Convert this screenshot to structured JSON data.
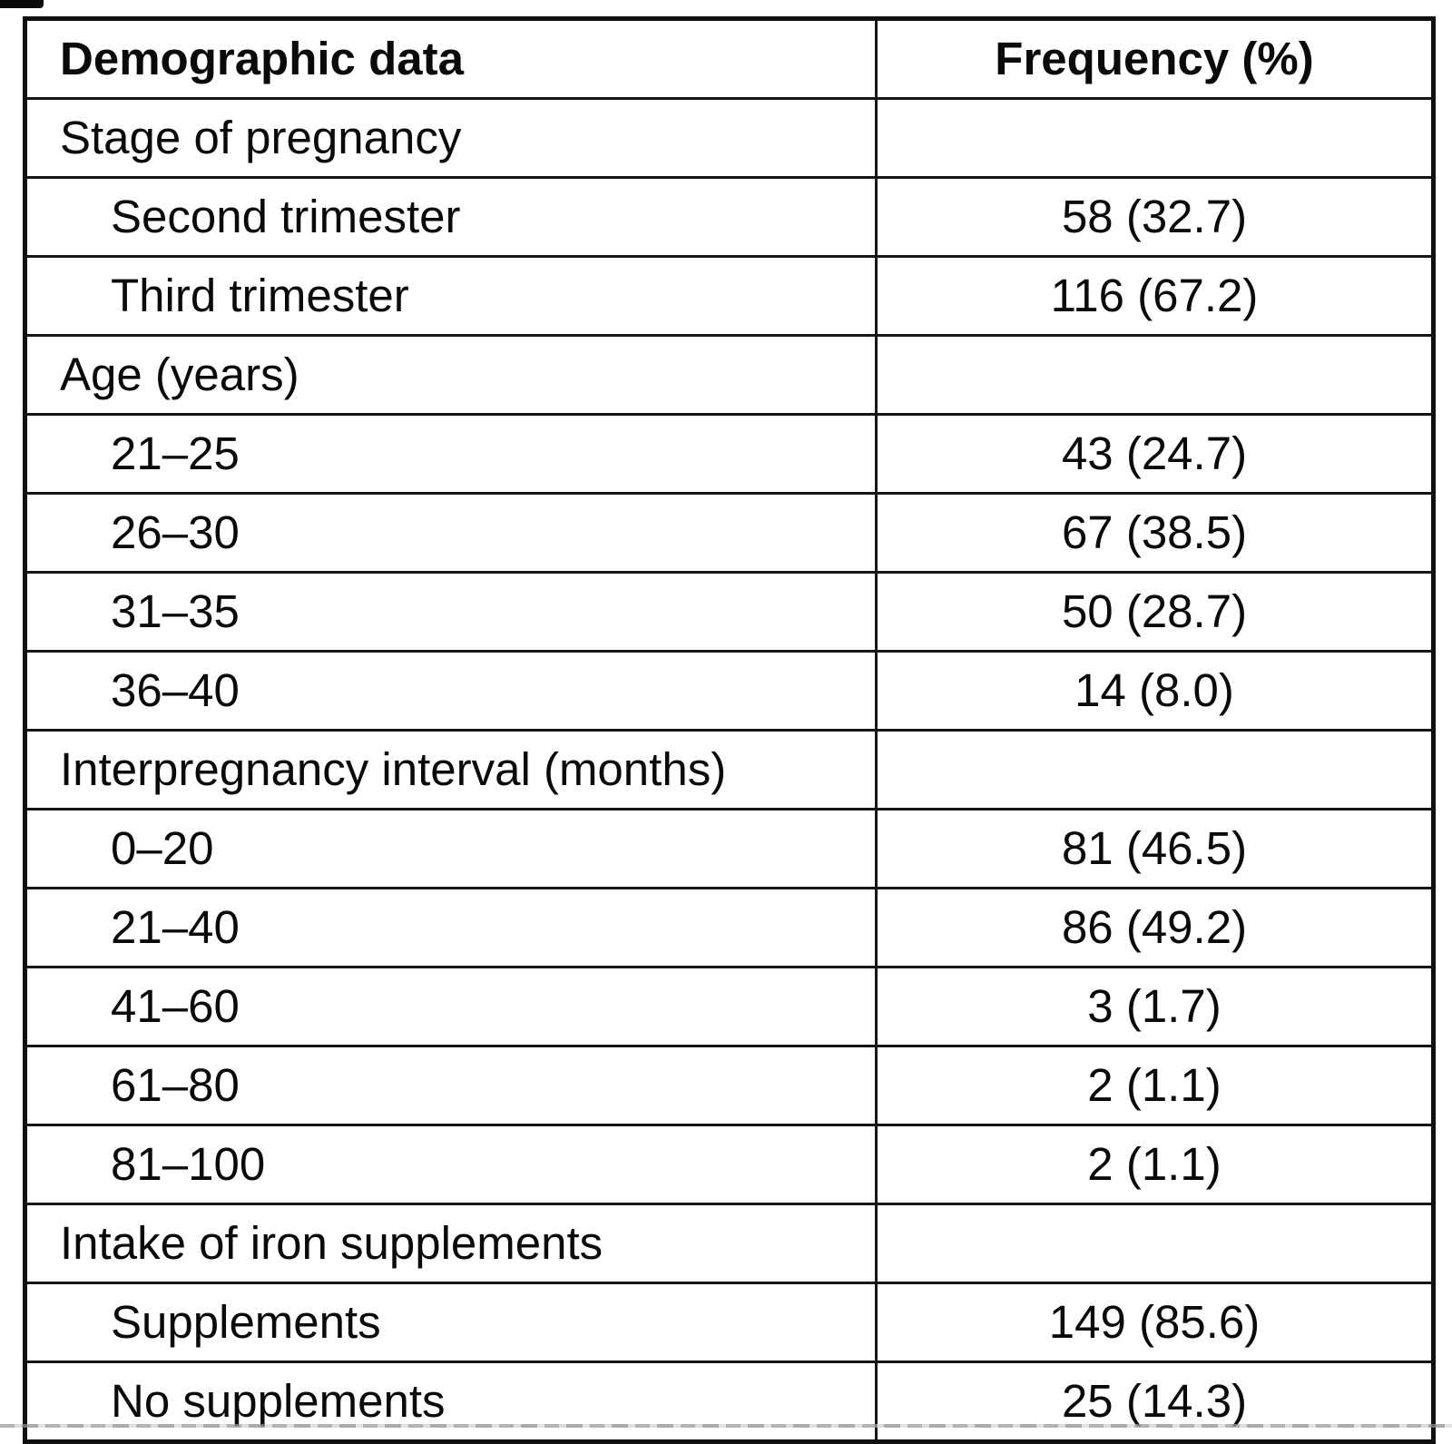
{
  "table": {
    "columns": [
      "Demographic data",
      "Frequency (%)"
    ],
    "rows": [
      {
        "type": "section",
        "label": "Stage of pregnancy",
        "value": ""
      },
      {
        "type": "item",
        "label": "Second trimester",
        "value": "58 (32.7)"
      },
      {
        "type": "item",
        "label": "Third trimester",
        "value": "116 (67.2)"
      },
      {
        "type": "section",
        "label": "Age (years)",
        "value": ""
      },
      {
        "type": "item",
        "label": "21–25",
        "value": "43 (24.7)"
      },
      {
        "type": "item",
        "label": "26–30",
        "value": "67 (38.5)"
      },
      {
        "type": "item",
        "label": "31–35",
        "value": "50 (28.7)"
      },
      {
        "type": "item",
        "label": "36–40",
        "value": "14 (8.0)"
      },
      {
        "type": "section",
        "label": "Interpregnancy interval (months)",
        "value": ""
      },
      {
        "type": "item",
        "label": "0–20",
        "value": "81 (46.5)"
      },
      {
        "type": "item",
        "label": "21–40",
        "value": "86 (49.2)"
      },
      {
        "type": "item",
        "label": "41–60",
        "value": "3 (1.7)"
      },
      {
        "type": "item",
        "label": "61–80",
        "value": "2 (1.1)"
      },
      {
        "type": "item",
        "label": "81–100",
        "value": "2 (1.1)"
      },
      {
        "type": "section",
        "label": "Intake of iron supplements",
        "value": ""
      },
      {
        "type": "item",
        "label": "Supplements",
        "value": "149 (85.6)"
      },
      {
        "type": "item",
        "label": "No supplements",
        "value": "25 (14.3)"
      }
    ]
  },
  "chart_data": {
    "type": "table",
    "title": "Demographic data frequency table",
    "columns": [
      "Demographic data",
      "Frequency (%)"
    ],
    "sections": [
      {
        "header": "Stage of pregnancy",
        "rows": [
          {
            "category": "Second trimester",
            "frequency": 58,
            "percent": 32.7,
            "display": "58 (32.7)"
          },
          {
            "category": "Third trimester",
            "frequency": 116,
            "percent": 67.2,
            "display": "116 (67.2)"
          }
        ]
      },
      {
        "header": "Age (years)",
        "rows": [
          {
            "category": "21–25",
            "frequency": 43,
            "percent": 24.7,
            "display": "43 (24.7)"
          },
          {
            "category": "26–30",
            "frequency": 67,
            "percent": 38.5,
            "display": "67 (38.5)"
          },
          {
            "category": "31–35",
            "frequency": 50,
            "percent": 28.7,
            "display": "50 (28.7)"
          },
          {
            "category": "36–40",
            "frequency": 14,
            "percent": 8.0,
            "display": "14 (8.0)"
          }
        ]
      },
      {
        "header": "Interpregnancy interval (months)",
        "rows": [
          {
            "category": "0–20",
            "frequency": 81,
            "percent": 46.5,
            "display": "81 (46.5)"
          },
          {
            "category": "21–40",
            "frequency": 86,
            "percent": 49.2,
            "display": "86 (49.2)"
          },
          {
            "category": "41–60",
            "frequency": 3,
            "percent": 1.7,
            "display": "3 (1.7)"
          },
          {
            "category": "61–80",
            "frequency": 2,
            "percent": 1.1,
            "display": "2 (1.1)"
          },
          {
            "category": "81–100",
            "frequency": 2,
            "percent": 1.1,
            "display": "2 (1.1)"
          }
        ]
      },
      {
        "header": "Intake of iron supplements",
        "rows": [
          {
            "category": "Supplements",
            "frequency": 149,
            "percent": 85.6,
            "display": "149 (85.6)"
          },
          {
            "category": "No supplements",
            "frequency": 25,
            "percent": 14.3,
            "display": "25 (14.3)"
          }
        ]
      }
    ],
    "layout": {
      "grid": true,
      "border_color": "#101010",
      "text_color": "#0a0a0a",
      "background_color": "#ffffff",
      "label_column_align": "left",
      "value_column_align": "center"
    }
  }
}
